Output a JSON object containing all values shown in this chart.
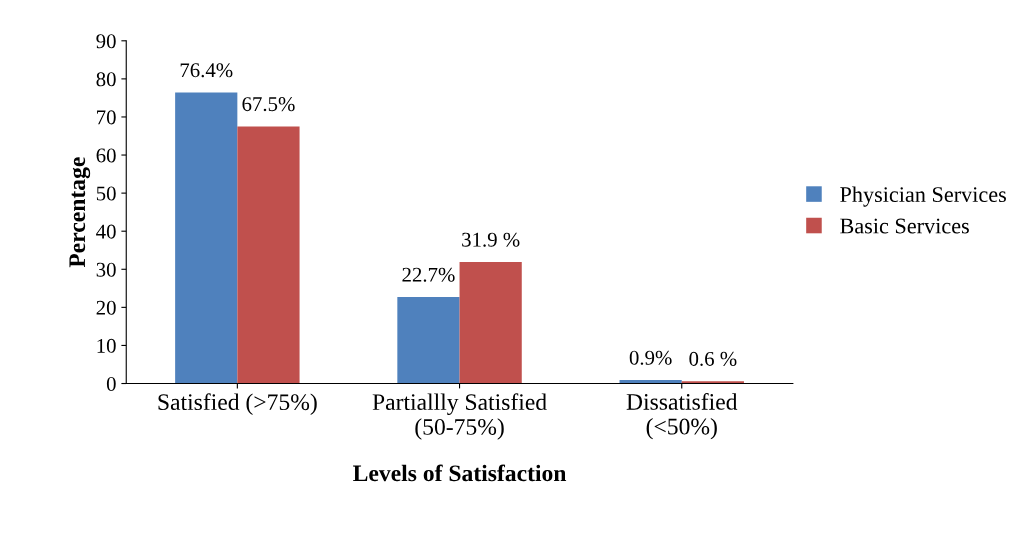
{
  "chart_data": {
    "type": "bar",
    "xlabel": "Levels of Satisfaction",
    "ylabel": "Percentage",
    "categories": [
      "Satisfied (>75%)",
      "Partiallly Satisfied\n(50-75%)",
      "Dissatisfied\n(<50%)"
    ],
    "series": [
      {
        "name": "Physician Services",
        "color": "#4f81bd",
        "values": [
          76.4,
          22.7,
          0.9
        ],
        "value_labels": [
          "76.4%",
          "22.7%",
          "0.9%"
        ]
      },
      {
        "name": "Basic Services",
        "color": "#c0504d",
        "values": [
          67.5,
          31.9,
          0.6
        ],
        "value_labels": [
          "67.5%",
          "31.9 %",
          "0.6 %"
        ]
      }
    ],
    "ylim": [
      0,
      90
    ],
    "yticks": [
      0,
      10,
      20,
      30,
      40,
      50,
      60,
      70,
      80,
      90
    ],
    "grid": false,
    "legend": "right"
  }
}
